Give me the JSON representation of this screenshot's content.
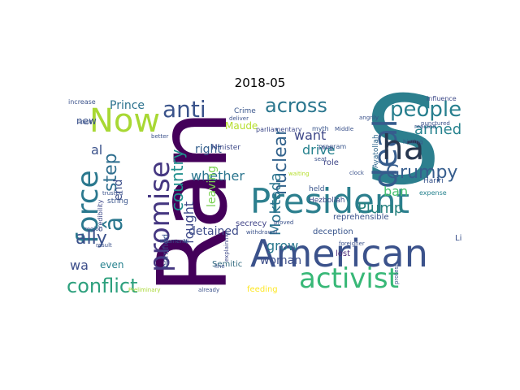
{
  "chart_data": {
    "type": "wordcloud",
    "title": "2018-05",
    "background": "#ffffff",
    "colormap": "viridis",
    "words": [
      {
        "text": "S",
        "size": 150,
        "color": "#2c7f8e"
      },
      {
        "text": "Ran",
        "size": 118,
        "color": "#44005a",
        "rotate": -90
      },
      {
        "text": "American",
        "size": 46,
        "color": "#3b528b"
      },
      {
        "text": "President",
        "size": 42,
        "color": "#2c7f8e"
      },
      {
        "text": "activist",
        "size": 34,
        "color": "#38b877"
      },
      {
        "text": "Now",
        "size": 40,
        "color": "#a8d834"
      },
      {
        "text": "deal",
        "size": 40,
        "color": "#365c8d",
        "rotate": -90
      },
      {
        "text": "ha",
        "size": 42,
        "color": "#27374f"
      },
      {
        "text": "force",
        "size": 36,
        "color": "#2a788e",
        "rotate": -90
      },
      {
        "text": "promise",
        "size": 34,
        "color": "#453781",
        "rotate": -90
      },
      {
        "text": "people",
        "size": 26,
        "color": "#277f8e"
      },
      {
        "text": "anti",
        "size": 28,
        "color": "#3a538b"
      },
      {
        "text": "across",
        "size": 24,
        "color": "#2a768e"
      },
      {
        "text": "conflict",
        "size": 24,
        "color": "#2da07d"
      },
      {
        "text": "Grumpy",
        "size": 22,
        "color": "#365d8d"
      },
      {
        "text": "nuclear",
        "size": 22,
        "color": "#33638d",
        "rotate": -90
      },
      {
        "text": "country",
        "size": 20,
        "color": "#20908d",
        "rotate": -90
      },
      {
        "text": "step",
        "size": 22,
        "color": "#2e6e8e",
        "rotate": -90
      },
      {
        "text": "ally",
        "size": 22,
        "color": "#3b518b"
      },
      {
        "text": "â",
        "size": 30,
        "color": "#2a778e",
        "rotate": -90
      },
      {
        "text": "armed",
        "size": 18,
        "color": "#26828e"
      },
      {
        "text": "Moktada",
        "size": 18,
        "color": "#2b748e",
        "rotate": -90
      },
      {
        "text": "whether",
        "size": 16,
        "color": "#2b758e"
      },
      {
        "text": "fought",
        "size": 16,
        "color": "#3e4989",
        "rotate": -90
      },
      {
        "text": "Plump",
        "size": 18,
        "color": "#27817e"
      },
      {
        "text": "grow",
        "size": 16,
        "color": "#2a788e"
      },
      {
        "text": "want",
        "size": 16,
        "color": "#3f4888"
      },
      {
        "text": "ban",
        "size": 16,
        "color": "#46c06f"
      },
      {
        "text": "drive",
        "size": 16,
        "color": "#26828e"
      },
      {
        "text": "wa",
        "size": 16,
        "color": "#3d4e8a"
      },
      {
        "text": "detained",
        "size": 14,
        "color": "#3e4c8a"
      },
      {
        "text": "right",
        "size": 14,
        "color": "#355f8d"
      },
      {
        "text": "woman",
        "size": 14,
        "color": "#3d4e8a"
      },
      {
        "text": "leaving",
        "size": 14,
        "color": "#7ad151",
        "rotate": -90
      },
      {
        "text": "Prince",
        "size": 14,
        "color": "#2c728e"
      },
      {
        "text": "al",
        "size": 16,
        "color": "#3b528b"
      },
      {
        "text": "end",
        "size": 14,
        "color": "#3d4e8a",
        "rotate": -90
      },
      {
        "text": "even",
        "size": 12,
        "color": "#26818e"
      },
      {
        "text": "Maude",
        "size": 12,
        "color": "#b5de2b"
      },
      {
        "text": "role",
        "size": 10,
        "color": "#3f4788"
      },
      {
        "text": "deception",
        "size": 10,
        "color": "#39558c"
      },
      {
        "text": "secrecy",
        "size": 10,
        "color": "#414487"
      },
      {
        "text": "new",
        "size": 12,
        "color": "#3b528b"
      },
      {
        "text": "reprehensible",
        "size": 10,
        "color": "#3b518b"
      },
      {
        "text": "lost",
        "size": 10,
        "color": "#482878"
      },
      {
        "text": "Semitic",
        "size": 10,
        "color": "#30697e"
      },
      {
        "text": "held",
        "size": 9,
        "color": "#39558c"
      },
      {
        "text": "Hezbollah",
        "size": 9,
        "color": "#3e4a89"
      },
      {
        "text": "feeding",
        "size": 10,
        "color": "#fde725"
      },
      {
        "text": "horrified",
        "size": 10,
        "color": "#3a548c",
        "rotate": -90
      },
      {
        "text": "Crime",
        "size": 9,
        "color": "#39568c"
      },
      {
        "text": "Minister",
        "size": 9,
        "color": "#3e4a89"
      },
      {
        "text": "Hariri",
        "size": 9,
        "color": "#39558c"
      },
      {
        "text": "Ayatollah",
        "size": 9,
        "color": "#31688e",
        "rotate": -90
      },
      {
        "text": "influence",
        "size": 8,
        "color": "#3e4a89"
      },
      {
        "text": "increase",
        "size": 8,
        "color": "#3b528b"
      },
      {
        "text": "credibility",
        "size": 8,
        "color": "#3e4989",
        "rotate": -90
      },
      {
        "text": "string",
        "size": 9,
        "color": "#39558c"
      },
      {
        "text": "parliamentary",
        "size": 8,
        "color": "#3e4989"
      },
      {
        "text": "program",
        "size": 8,
        "color": "#39568c"
      },
      {
        "text": "myth",
        "size": 8,
        "color": "#39568c"
      },
      {
        "text": "expense",
        "size": 8,
        "color": "#26828e"
      },
      {
        "text": "trusted",
        "size": 7,
        "color": "#3b528b"
      },
      {
        "text": "already",
        "size": 7,
        "color": "#3b528b"
      },
      {
        "text": "withdrawal",
        "size": 7,
        "color": "#3b528b"
      },
      {
        "text": "waiting",
        "size": 7,
        "color": "#b5de2b"
      },
      {
        "text": "Khamenei",
        "size": 7,
        "color": "#39558c"
      },
      {
        "text": "result",
        "size": 7,
        "color": "#3b528b"
      },
      {
        "text": "region",
        "size": 7,
        "color": "#3b528b"
      },
      {
        "text": "Preliminary",
        "size": 7,
        "color": "#a8d834"
      },
      {
        "text": "better",
        "size": 7,
        "color": "#3b528b"
      },
      {
        "text": "explaining",
        "size": 7,
        "color": "#3e4989",
        "rotate": -90
      },
      {
        "text": "proved",
        "size": 7,
        "color": "#3b528b"
      },
      {
        "text": "turn",
        "size": 7,
        "color": "#3b528b"
      },
      {
        "text": "seat",
        "size": 7,
        "color": "#3b528b"
      },
      {
        "text": "clock",
        "size": 7,
        "color": "#3b528b"
      },
      {
        "text": "Middle",
        "size": 7,
        "color": "#3b528b"
      },
      {
        "text": "hinting",
        "size": 7,
        "color": "#3b528b"
      },
      {
        "text": "reacted",
        "size": 7,
        "color": "#3b528b"
      },
      {
        "text": "angrily",
        "size": 7,
        "color": "#3b528b"
      },
      {
        "text": "punctured",
        "size": 7,
        "color": "#3b528b"
      },
      {
        "text": "foreigner",
        "size": 7,
        "color": "#3b528b"
      },
      {
        "text": "deliver",
        "size": 7,
        "color": "#3b528b"
      },
      {
        "text": "adept",
        "size": 6,
        "color": "#3b528b"
      },
      {
        "text": "line",
        "size": 7,
        "color": "#3b528b"
      },
      {
        "text": "protest",
        "size": 7,
        "color": "#3b528b",
        "rotate": -90
      },
      {
        "text": "Li",
        "size": 10,
        "color": "#3b528b"
      }
    ]
  }
}
